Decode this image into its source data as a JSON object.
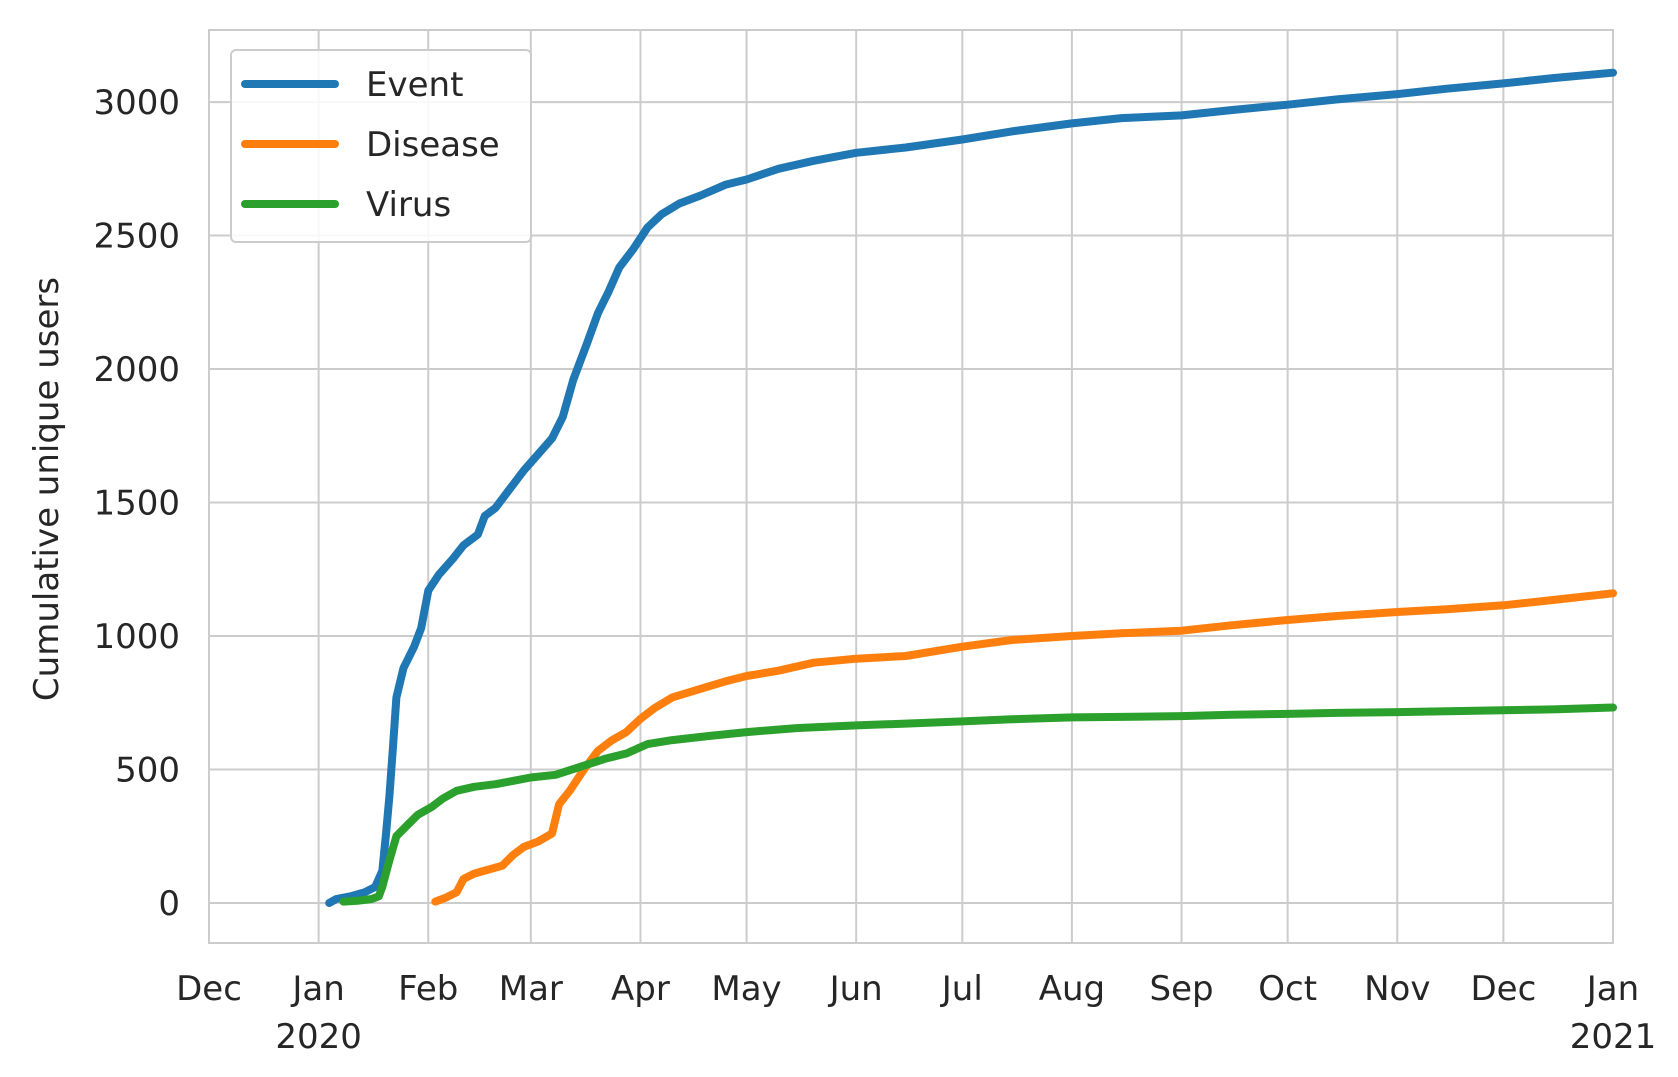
{
  "chart_data": {
    "type": "line",
    "title": "",
    "xlabel": "",
    "ylabel": "Cumulative unique users",
    "grid": true,
    "legend_position": "top-left",
    "xlim": [
      "2019-12-01",
      "2021-01-01"
    ],
    "ylim": [
      -150,
      3270
    ],
    "x_ticks": [
      {
        "date": "2019-12-01",
        "label": "Dec",
        "sub": ""
      },
      {
        "date": "2020-01-01",
        "label": "Jan",
        "sub": "2020"
      },
      {
        "date": "2020-02-01",
        "label": "Feb",
        "sub": ""
      },
      {
        "date": "2020-03-01",
        "label": "Mar",
        "sub": ""
      },
      {
        "date": "2020-04-01",
        "label": "Apr",
        "sub": ""
      },
      {
        "date": "2020-05-01",
        "label": "May",
        "sub": ""
      },
      {
        "date": "2020-06-01",
        "label": "Jun",
        "sub": ""
      },
      {
        "date": "2020-07-01",
        "label": "Jul",
        "sub": ""
      },
      {
        "date": "2020-08-01",
        "label": "Aug",
        "sub": ""
      },
      {
        "date": "2020-09-01",
        "label": "Sep",
        "sub": ""
      },
      {
        "date": "2020-10-01",
        "label": "Oct",
        "sub": ""
      },
      {
        "date": "2020-11-01",
        "label": "Nov",
        "sub": ""
      },
      {
        "date": "2020-12-01",
        "label": "Dec",
        "sub": ""
      },
      {
        "date": "2021-01-01",
        "label": "Jan",
        "sub": "2021"
      }
    ],
    "y_ticks": [
      0,
      500,
      1000,
      1500,
      2000,
      2500,
      3000
    ],
    "series": [
      {
        "name": "Event",
        "color": "#1f77b4",
        "points": [
          [
            "2020-01-04",
            0
          ],
          [
            "2020-01-06",
            15
          ],
          [
            "2020-01-10",
            25
          ],
          [
            "2020-01-14",
            40
          ],
          [
            "2020-01-17",
            60
          ],
          [
            "2020-01-19",
            120
          ],
          [
            "2020-01-20",
            250
          ],
          [
            "2020-01-21",
            400
          ],
          [
            "2020-01-22",
            580
          ],
          [
            "2020-01-23",
            770
          ],
          [
            "2020-01-25",
            880
          ],
          [
            "2020-01-28",
            960
          ],
          [
            "2020-01-30",
            1030
          ],
          [
            "2020-02-01",
            1170
          ],
          [
            "2020-02-04",
            1230
          ],
          [
            "2020-02-08",
            1290
          ],
          [
            "2020-02-11",
            1340
          ],
          [
            "2020-02-15",
            1380
          ],
          [
            "2020-02-17",
            1450
          ],
          [
            "2020-02-20",
            1480
          ],
          [
            "2020-02-24",
            1550
          ],
          [
            "2020-02-28",
            1620
          ],
          [
            "2020-03-03",
            1680
          ],
          [
            "2020-03-07",
            1740
          ],
          [
            "2020-03-10",
            1820
          ],
          [
            "2020-03-13",
            1960
          ],
          [
            "2020-03-17",
            2100
          ],
          [
            "2020-03-20",
            2210
          ],
          [
            "2020-03-23",
            2290
          ],
          [
            "2020-03-26",
            2380
          ],
          [
            "2020-03-30",
            2450
          ],
          [
            "2020-04-03",
            2530
          ],
          [
            "2020-04-07",
            2580
          ],
          [
            "2020-04-12",
            2620
          ],
          [
            "2020-04-18",
            2650
          ],
          [
            "2020-04-25",
            2690
          ],
          [
            "2020-05-01",
            2710
          ],
          [
            "2020-05-10",
            2750
          ],
          [
            "2020-05-20",
            2780
          ],
          [
            "2020-06-01",
            2810
          ],
          [
            "2020-06-15",
            2830
          ],
          [
            "2020-07-01",
            2860
          ],
          [
            "2020-07-15",
            2890
          ],
          [
            "2020-08-01",
            2920
          ],
          [
            "2020-08-15",
            2940
          ],
          [
            "2020-09-01",
            2950
          ],
          [
            "2020-09-15",
            2970
          ],
          [
            "2020-10-01",
            2990
          ],
          [
            "2020-10-15",
            3010
          ],
          [
            "2020-11-01",
            3030
          ],
          [
            "2020-11-15",
            3050
          ],
          [
            "2020-12-01",
            3070
          ],
          [
            "2020-12-15",
            3090
          ],
          [
            "2021-01-01",
            3110
          ]
        ]
      },
      {
        "name": "Disease",
        "color": "#ff7f0e",
        "points": [
          [
            "2020-02-03",
            5
          ],
          [
            "2020-02-06",
            20
          ],
          [
            "2020-02-09",
            40
          ],
          [
            "2020-02-11",
            90
          ],
          [
            "2020-02-14",
            110
          ],
          [
            "2020-02-18",
            125
          ],
          [
            "2020-02-22",
            140
          ],
          [
            "2020-02-25",
            180
          ],
          [
            "2020-02-28",
            210
          ],
          [
            "2020-03-03",
            230
          ],
          [
            "2020-03-07",
            260
          ],
          [
            "2020-03-09",
            370
          ],
          [
            "2020-03-12",
            420
          ],
          [
            "2020-03-16",
            500
          ],
          [
            "2020-03-20",
            570
          ],
          [
            "2020-03-24",
            610
          ],
          [
            "2020-03-28",
            640
          ],
          [
            "2020-04-01",
            690
          ],
          [
            "2020-04-05",
            730
          ],
          [
            "2020-04-10",
            770
          ],
          [
            "2020-04-15",
            790
          ],
          [
            "2020-04-20",
            810
          ],
          [
            "2020-04-25",
            830
          ],
          [
            "2020-05-01",
            850
          ],
          [
            "2020-05-10",
            870
          ],
          [
            "2020-05-20",
            900
          ],
          [
            "2020-06-01",
            915
          ],
          [
            "2020-06-15",
            925
          ],
          [
            "2020-07-01",
            960
          ],
          [
            "2020-07-15",
            985
          ],
          [
            "2020-08-01",
            1000
          ],
          [
            "2020-08-15",
            1010
          ],
          [
            "2020-09-01",
            1020
          ],
          [
            "2020-09-15",
            1040
          ],
          [
            "2020-10-01",
            1060
          ],
          [
            "2020-10-15",
            1075
          ],
          [
            "2020-11-01",
            1090
          ],
          [
            "2020-11-15",
            1100
          ],
          [
            "2020-12-01",
            1115
          ],
          [
            "2020-12-15",
            1135
          ],
          [
            "2021-01-01",
            1160
          ]
        ]
      },
      {
        "name": "Virus",
        "color": "#2ca02c",
        "points": [
          [
            "2020-01-08",
            5
          ],
          [
            "2020-01-12",
            8
          ],
          [
            "2020-01-16",
            15
          ],
          [
            "2020-01-18",
            25
          ],
          [
            "2020-01-19",
            60
          ],
          [
            "2020-01-21",
            160
          ],
          [
            "2020-01-23",
            250
          ],
          [
            "2020-01-26",
            290
          ],
          [
            "2020-01-29",
            330
          ],
          [
            "2020-02-02",
            360
          ],
          [
            "2020-02-05",
            390
          ],
          [
            "2020-02-09",
            420
          ],
          [
            "2020-02-14",
            435
          ],
          [
            "2020-02-20",
            445
          ],
          [
            "2020-02-26",
            460
          ],
          [
            "2020-03-01",
            470
          ],
          [
            "2020-03-08",
            480
          ],
          [
            "2020-03-15",
            510
          ],
          [
            "2020-03-22",
            540
          ],
          [
            "2020-03-28",
            560
          ],
          [
            "2020-04-03",
            595
          ],
          [
            "2020-04-10",
            610
          ],
          [
            "2020-04-20",
            625
          ],
          [
            "2020-05-01",
            640
          ],
          [
            "2020-05-15",
            655
          ],
          [
            "2020-06-01",
            665
          ],
          [
            "2020-06-15",
            672
          ],
          [
            "2020-07-01",
            680
          ],
          [
            "2020-07-15",
            688
          ],
          [
            "2020-08-01",
            695
          ],
          [
            "2020-08-15",
            697
          ],
          [
            "2020-09-01",
            700
          ],
          [
            "2020-09-15",
            705
          ],
          [
            "2020-10-01",
            708
          ],
          [
            "2020-10-15",
            712
          ],
          [
            "2020-11-01",
            715
          ],
          [
            "2020-11-15",
            718
          ],
          [
            "2020-12-01",
            722
          ],
          [
            "2020-12-15",
            725
          ],
          [
            "2021-01-01",
            732
          ]
        ]
      }
    ]
  }
}
